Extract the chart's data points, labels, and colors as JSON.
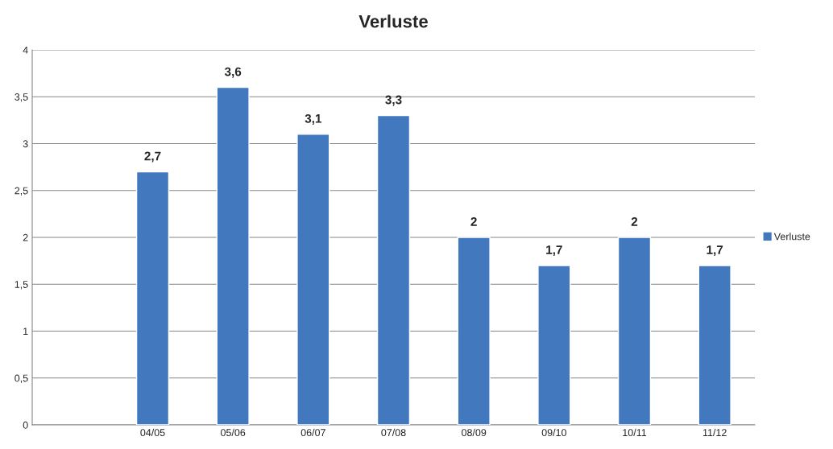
{
  "chart_data": {
    "type": "bar",
    "title": "Verluste",
    "categories": [
      null,
      "04/05",
      "05/06",
      "06/07",
      "07/08",
      "08/09",
      "09/10",
      "10/11",
      "11/12"
    ],
    "series": [
      {
        "name": "Verluste",
        "color": "#4178be",
        "values": [
          null,
          2.7,
          3.6,
          3.1,
          3.3,
          2,
          1.7,
          2,
          1.7
        ],
        "value_labels": [
          null,
          "2,7",
          "3,6",
          "3,1",
          "3,3",
          "2",
          "1,7",
          "2",
          "1,7"
        ]
      }
    ],
    "ylim": [
      0,
      4
    ],
    "yticks": [
      0,
      {
        "value": 0.5,
        "label": "0,5"
      },
      1,
      {
        "value": 1.5,
        "label": "1,5"
      },
      2,
      {
        "value": 2.5,
        "label": "2,5"
      },
      3,
      {
        "value": 3.5,
        "label": "3,5"
      },
      4
    ],
    "grid": "y",
    "legend": "right"
  }
}
